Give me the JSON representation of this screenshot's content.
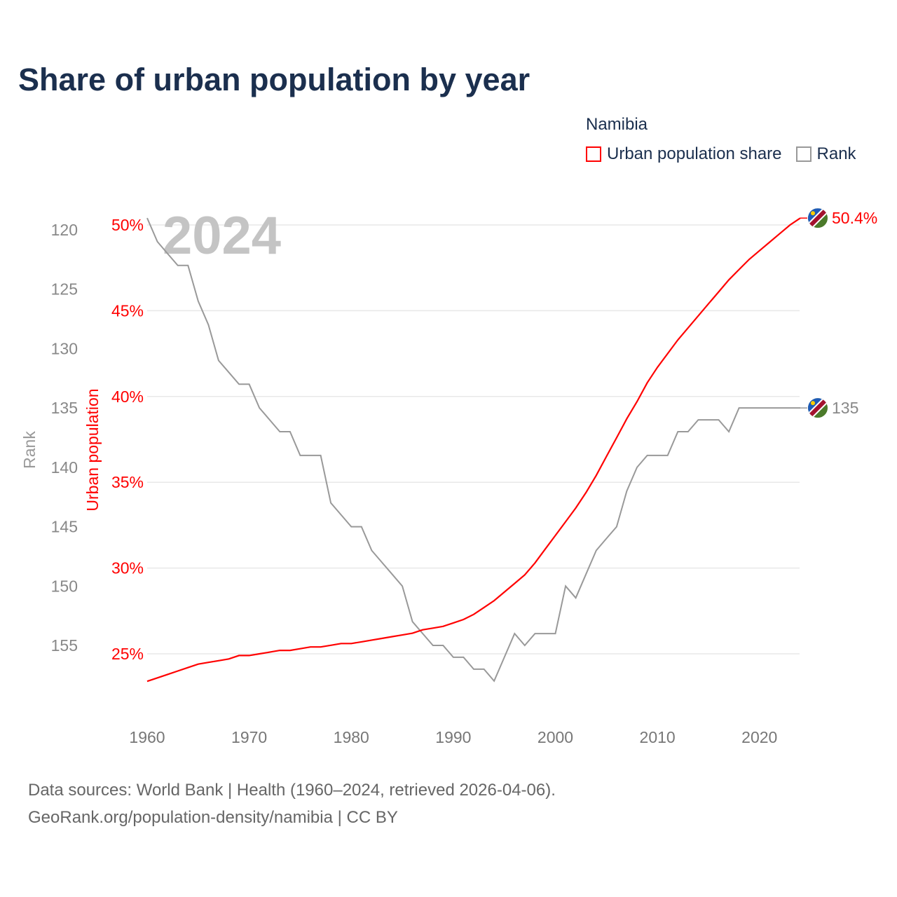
{
  "title": "Share of urban population by year",
  "legend": {
    "title": "Namibia",
    "items": [
      {
        "label": "Urban population share",
        "color": "#ff0000"
      },
      {
        "label": "Rank",
        "color": "#999999"
      }
    ]
  },
  "footer": {
    "line1": "Data sources: World Bank | Health (1960–2024, retrieved 2026-04-06).",
    "line2": "GeoRank.org/population-density/namibia | CC BY"
  },
  "chart_data": {
    "type": "line",
    "title": "Share of urban population by year",
    "year_watermark": "2024",
    "x": [
      1960,
      1961,
      1962,
      1963,
      1964,
      1965,
      1966,
      1967,
      1968,
      1969,
      1970,
      1971,
      1972,
      1973,
      1974,
      1975,
      1976,
      1977,
      1978,
      1979,
      1980,
      1981,
      1982,
      1983,
      1984,
      1985,
      1986,
      1987,
      1988,
      1989,
      1990,
      1991,
      1992,
      1993,
      1994,
      1995,
      1996,
      1997,
      1998,
      1999,
      2000,
      2001,
      2002,
      2003,
      2004,
      2005,
      2006,
      2007,
      2008,
      2009,
      2010,
      2011,
      2012,
      2013,
      2014,
      2015,
      2016,
      2017,
      2018,
      2019,
      2020,
      2021,
      2022,
      2023,
      2024
    ],
    "xlim": [
      1960,
      2024
    ],
    "xticks": [
      "1960",
      "1970",
      "1980",
      "1990",
      "2000",
      "2010",
      "2020"
    ],
    "series": [
      {
        "name": "Urban population share",
        "axis": "left-inner",
        "ylabel": "Urban population",
        "unit": "%",
        "color": "#ff0000",
        "ylim": [
          25,
          50
        ],
        "yticks": [
          "25%",
          "30%",
          "35%",
          "40%",
          "45%",
          "50%"
        ],
        "values": [
          23.4,
          23.6,
          23.8,
          24.0,
          24.2,
          24.4,
          24.5,
          24.6,
          24.7,
          24.9,
          24.9,
          25.0,
          25.1,
          25.2,
          25.2,
          25.3,
          25.4,
          25.4,
          25.5,
          25.6,
          25.6,
          25.7,
          25.8,
          25.9,
          26.0,
          26.1,
          26.2,
          26.4,
          26.5,
          26.6,
          26.8,
          27.0,
          27.3,
          27.7,
          28.1,
          28.6,
          29.1,
          29.6,
          30.3,
          31.1,
          31.9,
          32.7,
          33.5,
          34.4,
          35.4,
          36.5,
          37.6,
          38.7,
          39.7,
          40.8,
          41.7,
          42.5,
          43.3,
          44.0,
          44.7,
          45.4,
          46.1,
          46.8,
          47.4,
          48.0,
          48.5,
          49.0,
          49.5,
          50.0,
          50.4
        ],
        "end_label": "50.4%"
      },
      {
        "name": "Rank",
        "axis": "left-outer",
        "ylabel": "Rank",
        "color": "#999999",
        "inverted": true,
        "ylim": [
          120,
          155
        ],
        "yticks": [
          "120",
          "125",
          "130",
          "135",
          "140",
          "145",
          "150",
          "155"
        ],
        "values": [
          119,
          121,
          122,
          123,
          123,
          126,
          128,
          131,
          132,
          133,
          133,
          135,
          136,
          137,
          137,
          139,
          139,
          139,
          143,
          144,
          145,
          145,
          147,
          148,
          149,
          150,
          153,
          154,
          155,
          155,
          156,
          156,
          157,
          157,
          158,
          156,
          154,
          155,
          154,
          154,
          154,
          150,
          151,
          149,
          147,
          146,
          145,
          142,
          140,
          139,
          139,
          139,
          137,
          137,
          136,
          136,
          136,
          137,
          135,
          135,
          135,
          135,
          135,
          135,
          135
        ],
        "end_label": "135"
      }
    ]
  }
}
